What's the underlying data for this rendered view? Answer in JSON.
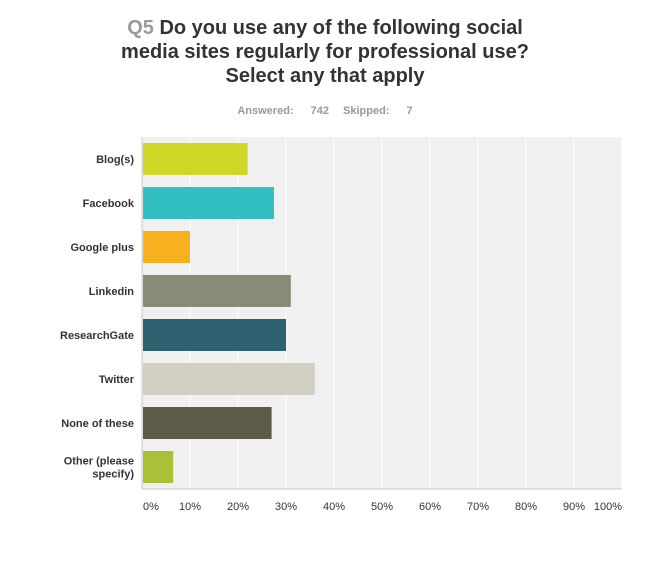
{
  "question": {
    "number": "Q5",
    "lines": [
      "Do you use any of the following social",
      "media sites regularly for professional use?",
      "Select any that apply"
    ]
  },
  "stats": {
    "answered_label": "Answered:",
    "answered_value": "742",
    "skipped_label": "Skipped:",
    "skipped_value": "7"
  },
  "chart_data": {
    "type": "bar",
    "orientation": "horizontal",
    "categories": [
      [
        "Blog(s)"
      ],
      [
        "Facebook"
      ],
      [
        "Google plus"
      ],
      [
        "Linkedin"
      ],
      [
        "ResearchGate"
      ],
      [
        "Twitter"
      ],
      [
        "None of these"
      ],
      [
        "Other (please",
        "specify)"
      ]
    ],
    "values": [
      22,
      27.5,
      10,
      31,
      30,
      36,
      27,
      6.5
    ],
    "colors": [
      "#cfd829",
      "#33bec2",
      "#f8b01f",
      "#8a8a79",
      "#2e6270",
      "#d0cfc2",
      "#5e5b4a",
      "#a9c038"
    ],
    "xlim": [
      0,
      100
    ],
    "xticks": [
      "0%",
      "10%",
      "20%",
      "30%",
      "40%",
      "50%",
      "60%",
      "70%",
      "80%",
      "90%",
      "100%"
    ],
    "grid": true,
    "plot_background": "#f0f0f0"
  }
}
